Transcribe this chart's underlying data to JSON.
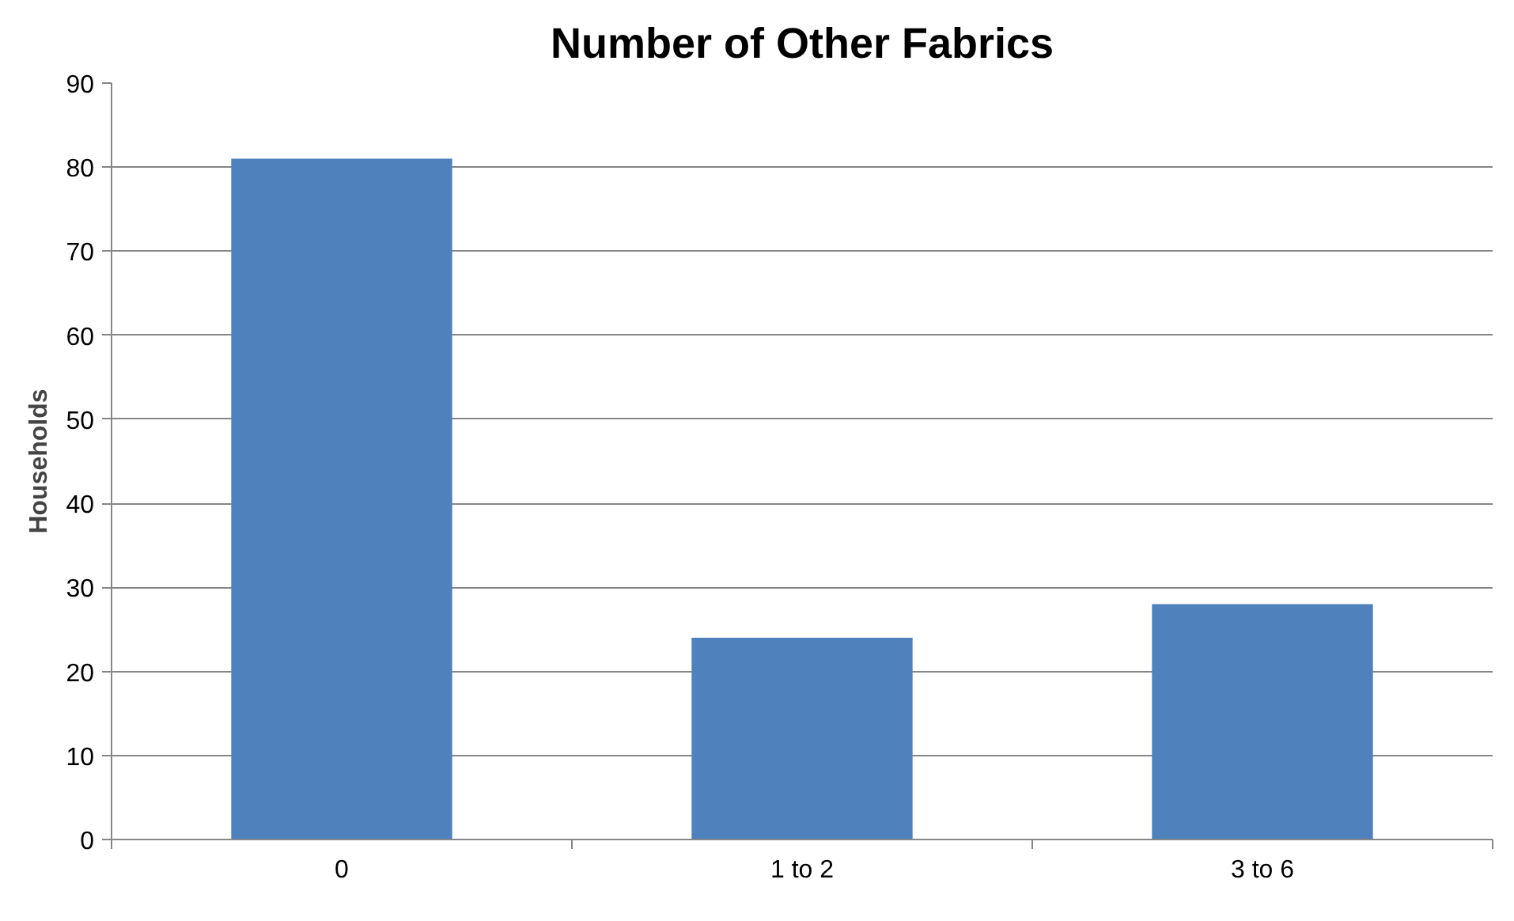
{
  "chart_data": {
    "type": "bar",
    "title": "Number of Other Fabrics",
    "ylabel": "Households",
    "categories": [
      "0",
      "1 to 2",
      "3 to 6"
    ],
    "values": [
      81,
      24,
      28
    ],
    "color": "#4f81bd",
    "ylim": [
      0,
      90
    ],
    "yticks": [
      0,
      10,
      20,
      30,
      40,
      50,
      60,
      70,
      80,
      90
    ],
    "grid": "y"
  }
}
